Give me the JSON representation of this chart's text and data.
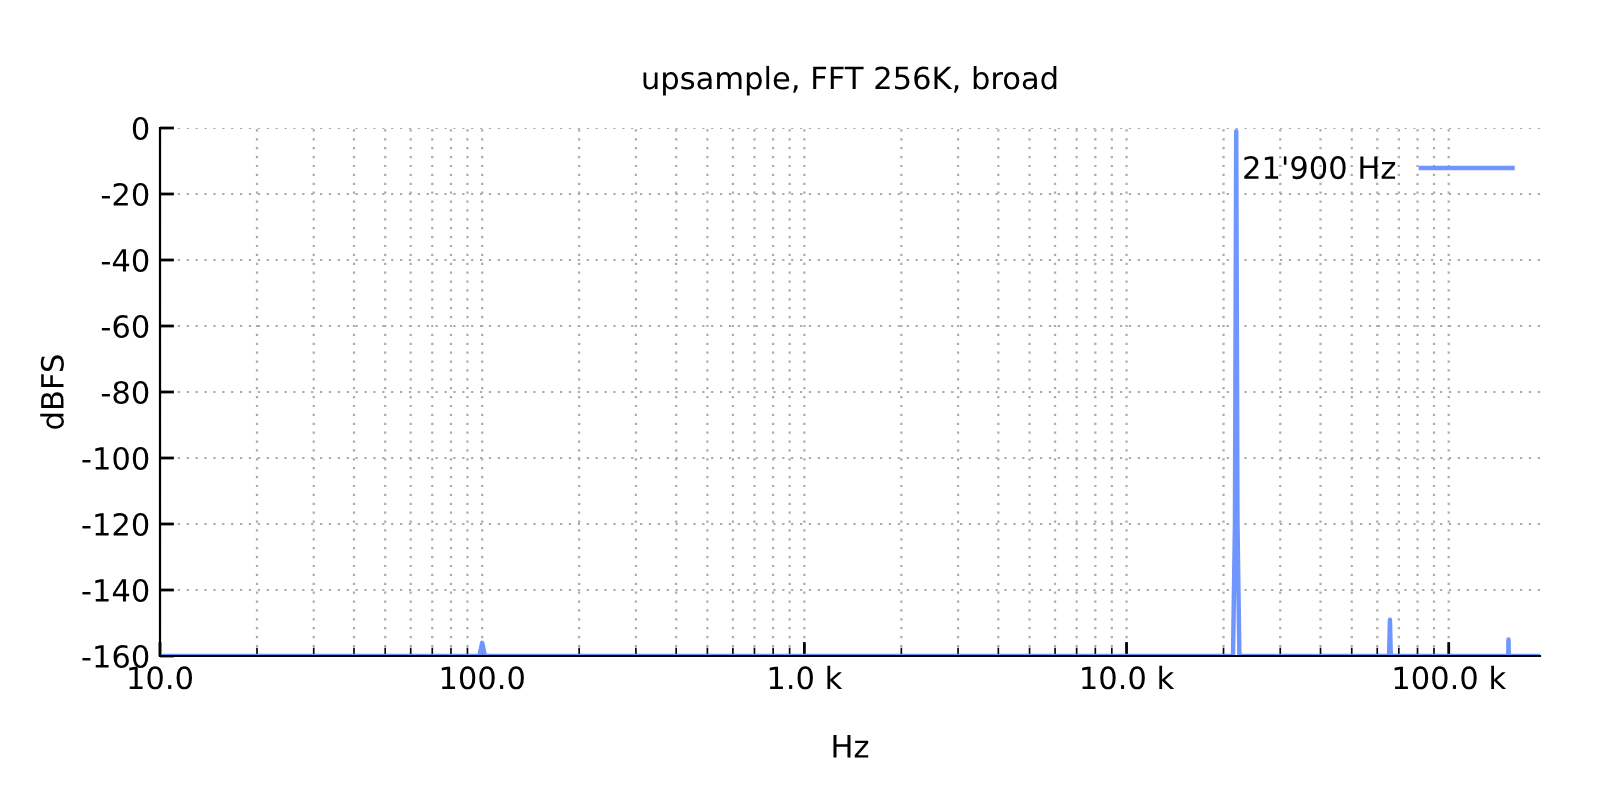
{
  "chart_data": {
    "type": "line",
    "title": "upsample, FFT 256K, broad",
    "xlabel": "Hz",
    "ylabel": "dBFS",
    "log": "x",
    "grid": true,
    "legend": "top right",
    "xlim": [
      10,
      192000
    ],
    "ylim": [
      -160,
      0
    ],
    "xticks": [
      {
        "value": 10,
        "label": "10.0"
      },
      {
        "value": 100,
        "label": "100.0"
      },
      {
        "value": 1000,
        "label": "1.0 k"
      },
      {
        "value": 10000,
        "label": "10.0 k"
      },
      {
        "value": 100000,
        "label": "100.0 k"
      }
    ],
    "yticks": [
      0,
      -20,
      -40,
      -60,
      -80,
      -100,
      -120,
      -140,
      -160
    ],
    "series": [
      {
        "name": "21'900 Hz",
        "color": "#6f95ff",
        "x": [
          10,
          98,
          100,
          102,
          21400,
          21700,
          21800,
          21900,
          22000,
          22100,
          22400,
          65300,
          65700,
          66100,
          153000,
          153300,
          153600,
          192000
        ],
        "values": [
          -160,
          -160,
          -156,
          -160,
          -160,
          -120,
          -60,
          -1,
          -60,
          -120,
          -160,
          -160,
          -149,
          -160,
          -160,
          -155,
          -160,
          -160
        ]
      }
    ]
  }
}
